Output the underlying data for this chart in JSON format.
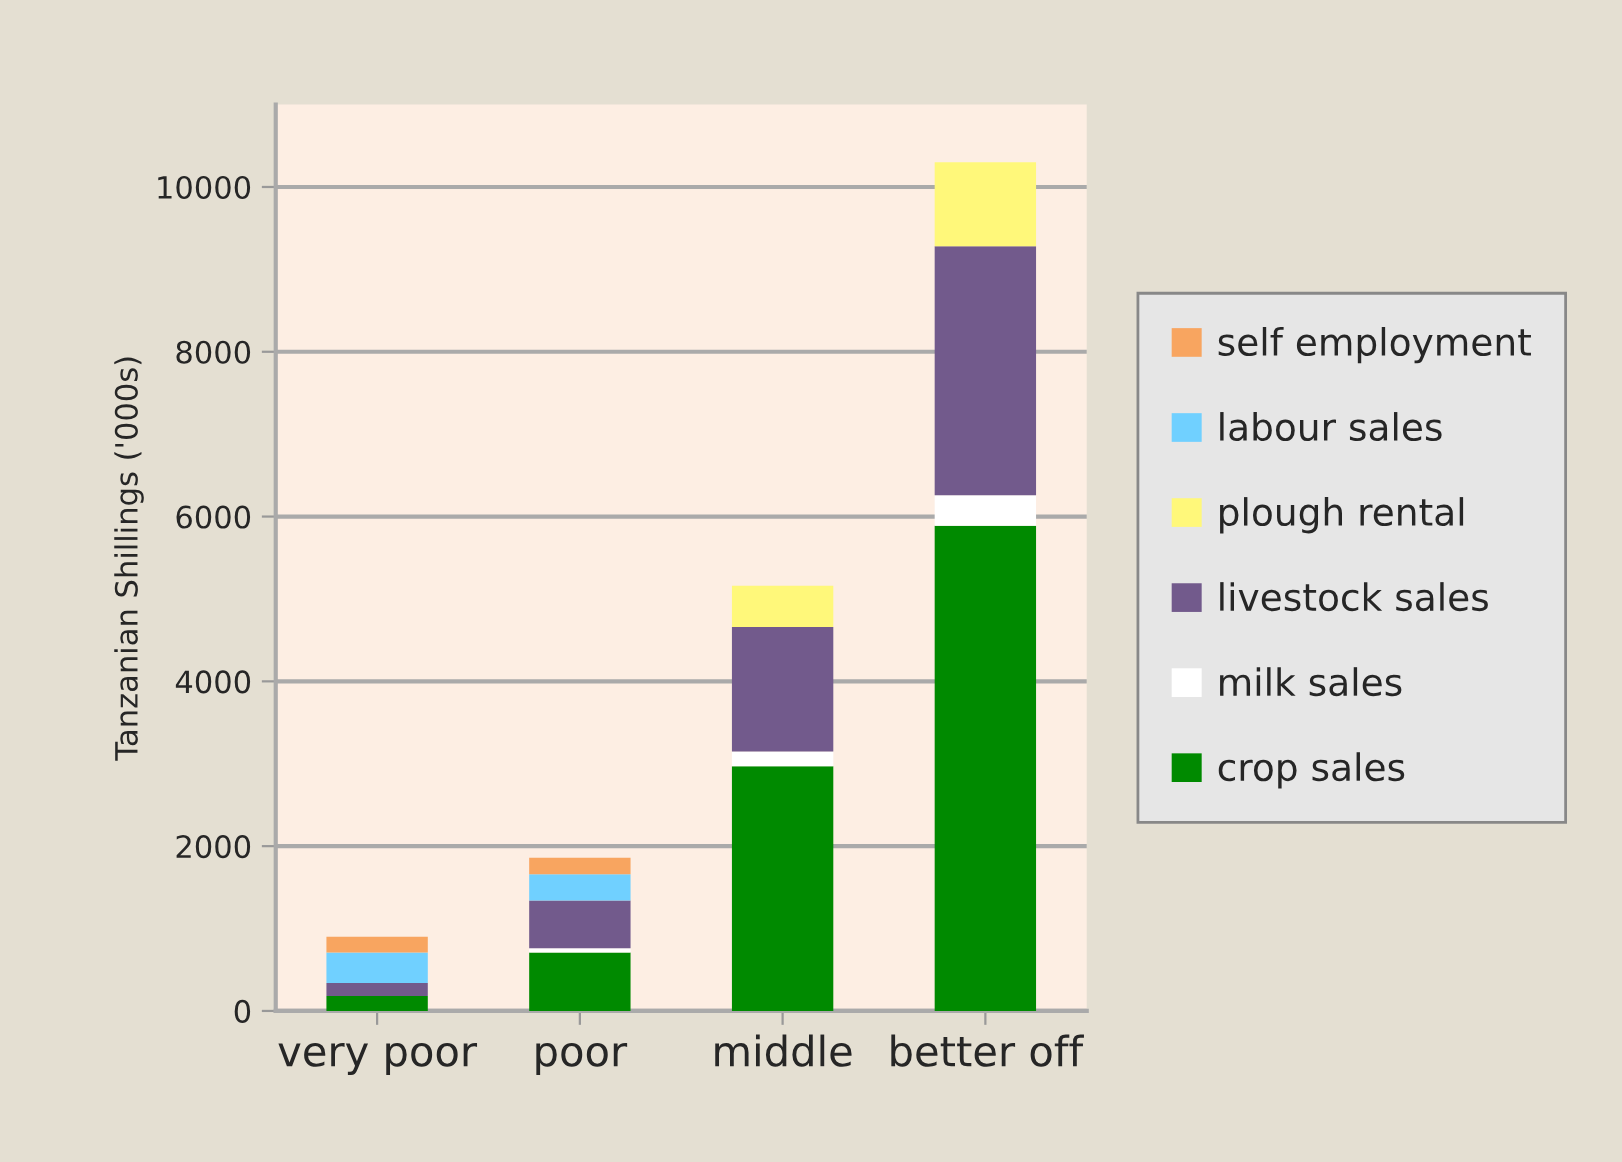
{
  "chart_data": {
    "type": "bar",
    "stacked": true,
    "ylabel": "Tanzanian Shillings ('000s)",
    "categories": [
      "very poor",
      "poor",
      "middle",
      "better off"
    ],
    "series": [
      {
        "name": "crop sales",
        "color": "#008a00",
        "values": [
          180,
          710,
          2970,
          5890
        ]
      },
      {
        "name": "milk sales",
        "color": "#ffffff",
        "values": [
          null,
          50,
          180,
          370
        ]
      },
      {
        "name": "livestock sales",
        "color": "#725a8c",
        "values": [
          160,
          580,
          1510,
          3020
        ]
      },
      {
        "name": "plough rental",
        "color": "#fff87a",
        "values": [
          null,
          null,
          500,
          1020
        ]
      },
      {
        "name": "labour sales",
        "color": "#70d0ff",
        "values": [
          370,
          320,
          null,
          null
        ]
      },
      {
        "name": "self employment",
        "color": "#f8a560",
        "values": [
          190,
          200,
          null,
          null
        ]
      }
    ],
    "ylim": [
      0,
      11000
    ],
    "yticks": [
      0,
      2000,
      4000,
      6000,
      8000,
      10000
    ],
    "grid": "y",
    "legend": "right"
  }
}
